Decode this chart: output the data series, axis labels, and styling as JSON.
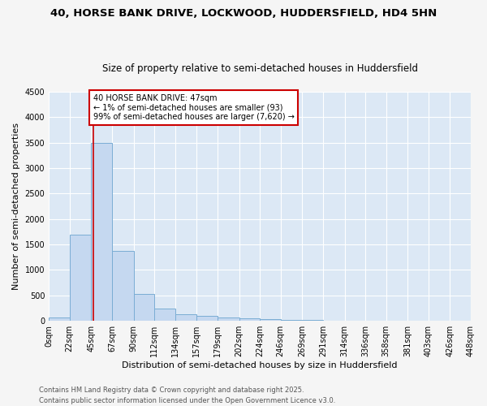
{
  "title_line1": "40, HORSE BANK DRIVE, LOCKWOOD, HUDDERSFIELD, HD4 5HN",
  "title_line2": "Size of property relative to semi-detached houses in Huddersfield",
  "xlabel": "Distribution of semi-detached houses by size in Huddersfield",
  "ylabel": "Number of semi-detached properties",
  "bar_color": "#c5d8f0",
  "bar_edge_color": "#7aadd4",
  "bin_edges": [
    0,
    22,
    45,
    67,
    90,
    112,
    134,
    157,
    179,
    202,
    224,
    246,
    269,
    291,
    314,
    336,
    358,
    381,
    403,
    426,
    448
  ],
  "bin_labels": [
    "0sqm",
    "22sqm",
    "45sqm",
    "67sqm",
    "90sqm",
    "112sqm",
    "134sqm",
    "157sqm",
    "179sqm",
    "202sqm",
    "224sqm",
    "246sqm",
    "269sqm",
    "291sqm",
    "314sqm",
    "336sqm",
    "358sqm",
    "381sqm",
    "403sqm",
    "426sqm",
    "448sqm"
  ],
  "bar_heights": [
    70,
    1700,
    3500,
    1380,
    530,
    240,
    130,
    95,
    60,
    50,
    35,
    25,
    15,
    0,
    0,
    0,
    0,
    0,
    0,
    0
  ],
  "ylim": [
    0,
    4500
  ],
  "yticks": [
    0,
    500,
    1000,
    1500,
    2000,
    2500,
    3000,
    3500,
    4000,
    4500
  ],
  "property_size": 47,
  "vline_color": "#cc0000",
  "annotation_text": "40 HORSE BANK DRIVE: 47sqm\n← 1% of semi-detached houses are smaller (93)\n99% of semi-detached houses are larger (7,620) →",
  "annotation_box_color": "#ffffff",
  "annotation_box_edge": "#cc0000",
  "footnote_line1": "Contains HM Land Registry data © Crown copyright and database right 2025.",
  "footnote_line2": "Contains public sector information licensed under the Open Government Licence v3.0.",
  "background_color": "#dce8f5",
  "fig_background": "#f5f5f5",
  "grid_color": "#ffffff",
  "title_fontsize": 9.5,
  "subtitle_fontsize": 8.5,
  "axis_label_fontsize": 8,
  "tick_fontsize": 7,
  "annotation_fontsize": 7,
  "footnote_fontsize": 6
}
